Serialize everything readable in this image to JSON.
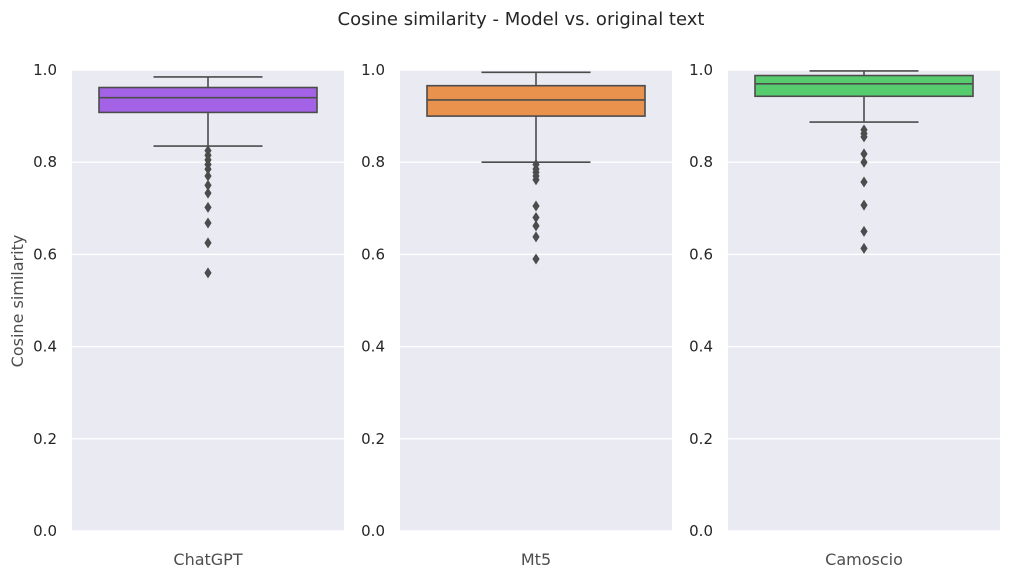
{
  "chart_data": {
    "type": "box",
    "title": "Cosine similarity - Model vs. original text",
    "ylabel": "Cosine similarity",
    "ylim": [
      0,
      1
    ],
    "yticks": [
      "0.0",
      "0.2",
      "0.4",
      "0.6",
      "0.8",
      "1.0"
    ],
    "grid": true,
    "panels": [
      {
        "category": "ChatGPT",
        "color": "#a463e6",
        "whisker_low": 0.835,
        "q1": 0.908,
        "median": 0.94,
        "q3": 0.962,
        "whisker_high": 0.985,
        "outliers": [
          0.825,
          0.815,
          0.805,
          0.795,
          0.785,
          0.77,
          0.75,
          0.733,
          0.702,
          0.668,
          0.625,
          0.56
        ]
      },
      {
        "category": "Mt5",
        "color": "#e8924e",
        "whisker_low": 0.8,
        "q1": 0.9,
        "median": 0.935,
        "q3": 0.966,
        "whisker_high": 0.995,
        "outliers": [
          0.795,
          0.785,
          0.778,
          0.77,
          0.762,
          0.705,
          0.68,
          0.662,
          0.638,
          0.59
        ]
      },
      {
        "category": "Camoscio",
        "color": "#56cc6e",
        "whisker_low": 0.887,
        "q1": 0.943,
        "median": 0.97,
        "q3": 0.988,
        "whisker_high": 0.998,
        "outliers": [
          0.87,
          0.862,
          0.855,
          0.818,
          0.8,
          0.757,
          0.707,
          0.65,
          0.613
        ]
      }
    ]
  }
}
